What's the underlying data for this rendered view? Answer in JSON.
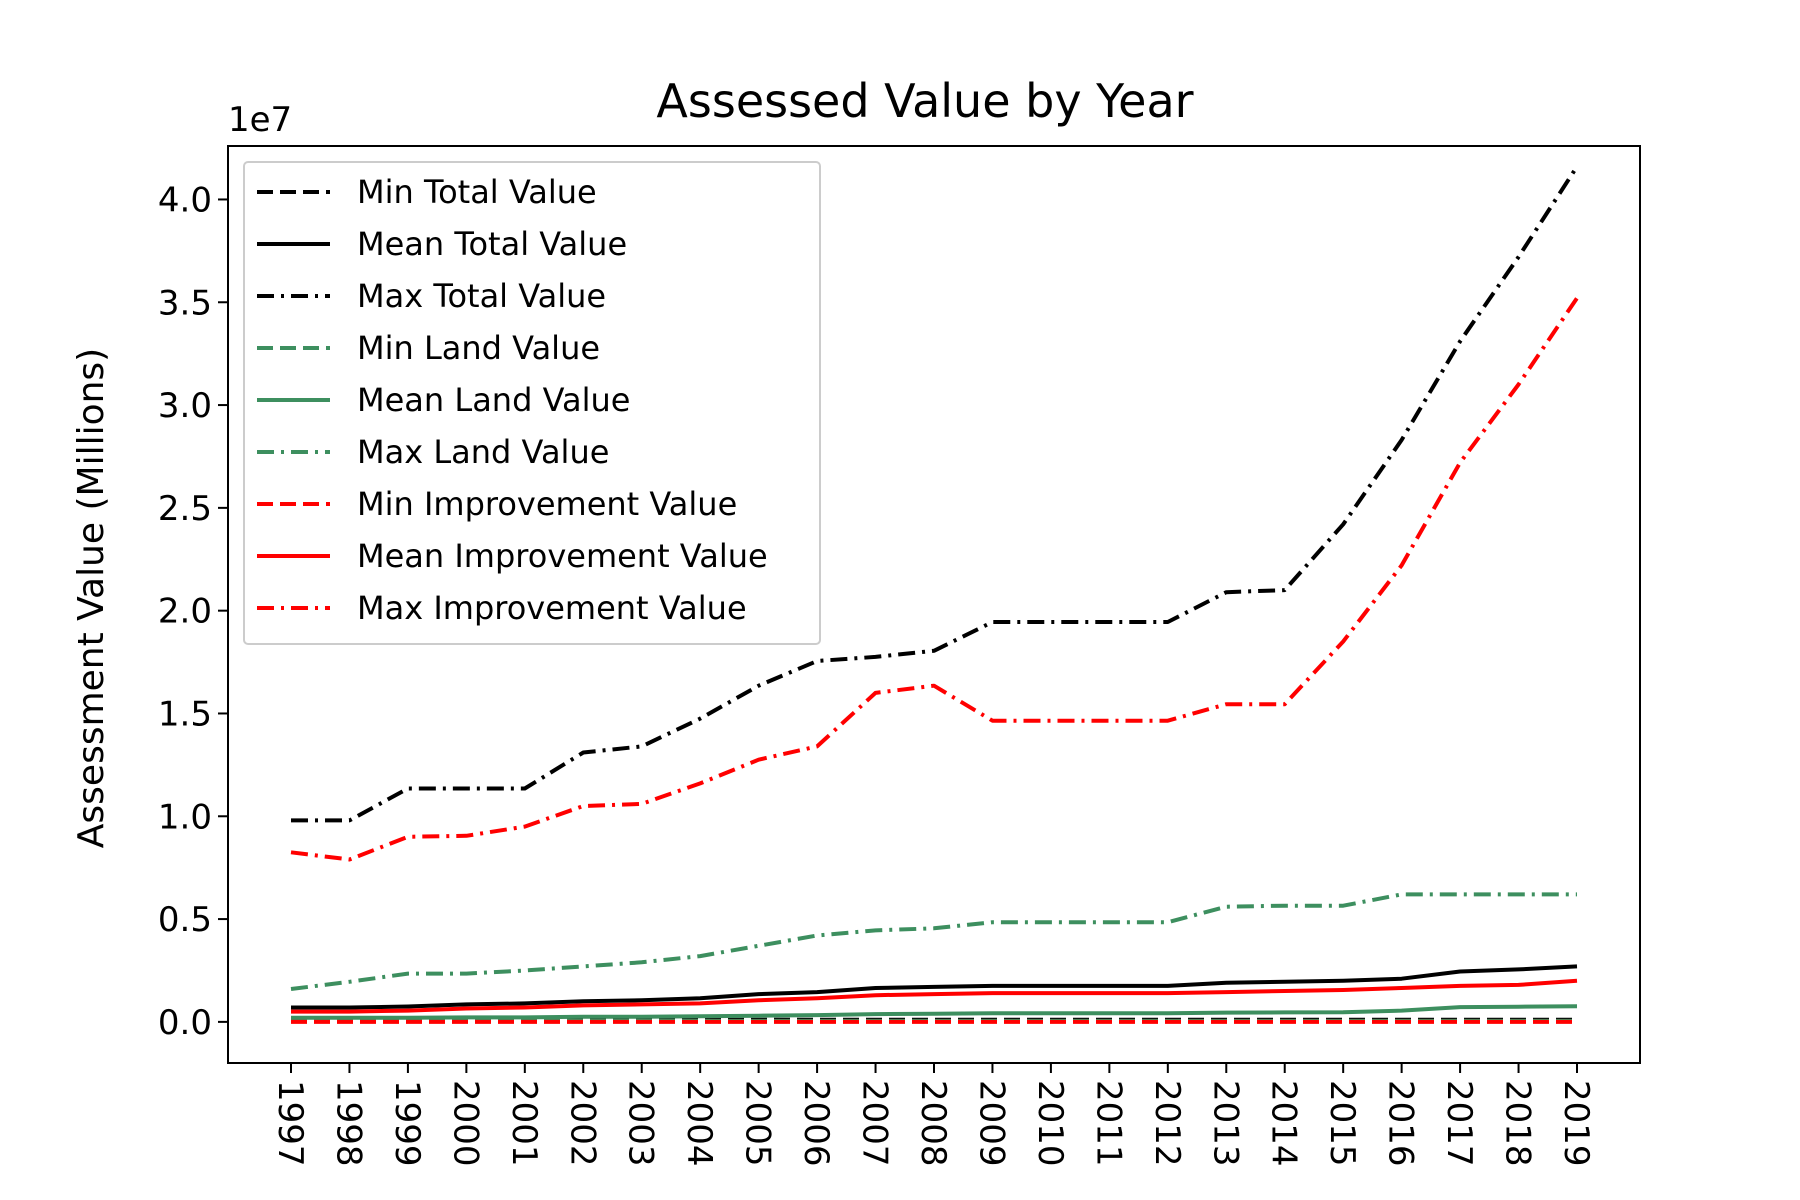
{
  "chart_data": {
    "type": "line",
    "title": "Assessed Value by Year",
    "xlabel": "",
    "ylabel": "Assessment Value (Millions)",
    "offset_text": "1e7",
    "ylim": [
      -0.2,
      4.26
    ],
    "y_ticks": [
      0.0,
      0.5,
      1.0,
      1.5,
      2.0,
      2.5,
      3.0,
      3.5,
      4.0
    ],
    "y_tick_labels": [
      "0.0",
      "0.5",
      "1.0",
      "1.5",
      "2.0",
      "2.5",
      "3.0",
      "3.5",
      "4.0"
    ],
    "grid": false,
    "legend_position": "top-left",
    "x": [
      "1997",
      "1998",
      "1999",
      "2000",
      "2001",
      "2002",
      "2003",
      "2004",
      "2005",
      "2006",
      "2007",
      "2008",
      "2009",
      "2010",
      "2011",
      "2012",
      "2013",
      "2014",
      "2015",
      "2016",
      "2017",
      "2018",
      "2019"
    ],
    "series": [
      {
        "name": "Min Total Value",
        "color": "#000000",
        "style": "dashed",
        "values": [
          0.01,
          0.01,
          0.01,
          0.01,
          0.01,
          0.01,
          0.01,
          0.01,
          0.01,
          0.01,
          0.01,
          0.01,
          0.01,
          0.01,
          0.01,
          0.01,
          0.01,
          0.01,
          0.01,
          0.01,
          0.01,
          0.01,
          0.01
        ]
      },
      {
        "name": "Mean Total Value",
        "color": "#000000",
        "style": "solid",
        "values": [
          0.07,
          0.07,
          0.075,
          0.085,
          0.09,
          0.1,
          0.105,
          0.115,
          0.135,
          0.145,
          0.165,
          0.17,
          0.175,
          0.175,
          0.175,
          0.175,
          0.19,
          0.195,
          0.2,
          0.21,
          0.245,
          0.255,
          0.27
        ]
      },
      {
        "name": "Max Total Value",
        "color": "#000000",
        "style": "dashdot",
        "values": [
          0.98,
          0.98,
          1.135,
          1.135,
          1.135,
          1.31,
          1.34,
          1.475,
          1.635,
          1.755,
          1.775,
          1.805,
          1.945,
          1.945,
          1.945,
          1.945,
          2.09,
          2.1,
          2.42,
          2.83,
          3.31,
          3.72,
          4.16
        ]
      },
      {
        "name": "Min Land Value",
        "color": "#3d8f5f",
        "style": "dashed",
        "values": [
          0.005,
          0.005,
          0.005,
          0.005,
          0.005,
          0.005,
          0.005,
          0.005,
          0.005,
          0.005,
          0.005,
          0.005,
          0.005,
          0.005,
          0.005,
          0.005,
          0.005,
          0.005,
          0.005,
          0.005,
          0.005,
          0.005,
          0.005
        ]
      },
      {
        "name": "Mean Land Value",
        "color": "#3d8f5f",
        "style": "solid",
        "values": [
          0.02,
          0.02,
          0.02,
          0.022,
          0.022,
          0.025,
          0.025,
          0.027,
          0.03,
          0.033,
          0.038,
          0.04,
          0.042,
          0.042,
          0.042,
          0.042,
          0.045,
          0.046,
          0.047,
          0.055,
          0.072,
          0.074,
          0.076
        ]
      },
      {
        "name": "Max Land Value",
        "color": "#3d8f5f",
        "style": "dashdot",
        "values": [
          0.16,
          0.195,
          0.235,
          0.235,
          0.25,
          0.27,
          0.29,
          0.32,
          0.37,
          0.42,
          0.445,
          0.455,
          0.485,
          0.485,
          0.485,
          0.485,
          0.56,
          0.565,
          0.565,
          0.62,
          0.62,
          0.62,
          0.62
        ]
      },
      {
        "name": "Min Improvement Value",
        "color": "#ff0000",
        "style": "dashed",
        "values": [
          0.0,
          0.0,
          0.0,
          0.0,
          0.0,
          0.0,
          0.0,
          0.0,
          0.0,
          0.0,
          0.0,
          0.0,
          0.0,
          0.0,
          0.0,
          0.0,
          0.0,
          0.0,
          0.0,
          0.0,
          0.0,
          0.0,
          0.0
        ]
      },
      {
        "name": "Mean Improvement Value",
        "color": "#ff0000",
        "style": "solid",
        "values": [
          0.05,
          0.05,
          0.055,
          0.065,
          0.07,
          0.08,
          0.085,
          0.09,
          0.105,
          0.115,
          0.13,
          0.135,
          0.14,
          0.14,
          0.14,
          0.14,
          0.145,
          0.15,
          0.155,
          0.165,
          0.175,
          0.18,
          0.2
        ]
      },
      {
        "name": "Max Improvement Value",
        "color": "#ff0000",
        "style": "dashdot",
        "values": [
          0.825,
          0.79,
          0.9,
          0.905,
          0.95,
          1.05,
          1.06,
          1.16,
          1.275,
          1.34,
          1.6,
          1.635,
          1.465,
          1.465,
          1.465,
          1.465,
          1.545,
          1.545,
          1.85,
          2.22,
          2.72,
          3.1,
          3.52
        ]
      }
    ]
  }
}
